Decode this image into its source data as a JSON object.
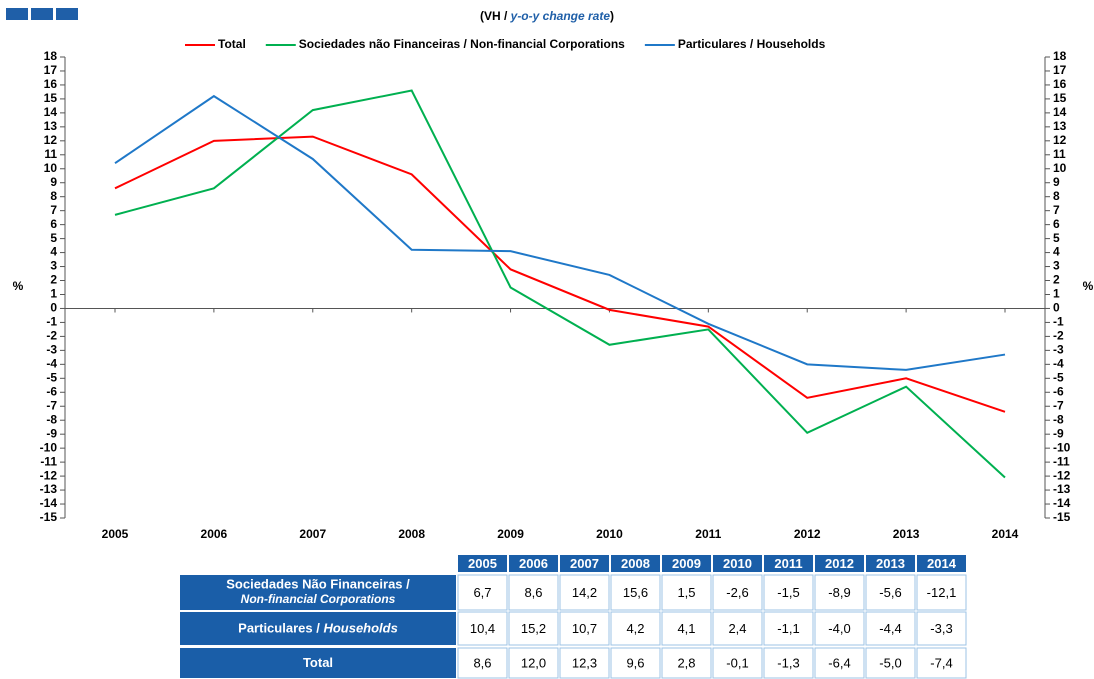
{
  "chart_data": {
    "type": "line",
    "subtitle": [
      "(VH / ",
      "y-o-y change rate",
      ")"
    ],
    "y_label": "%",
    "y2_label": "%",
    "categories": [
      "2005",
      "2006",
      "2007",
      "2008",
      "2009",
      "2010",
      "2011",
      "2012",
      "2013",
      "2014"
    ],
    "series": [
      {
        "name": "Total",
        "color": "#ff0000",
        "values": [
          8.6,
          12.0,
          12.3,
          9.6,
          2.8,
          -0.1,
          -1.3,
          -6.4,
          -5.0,
          -7.4
        ],
        "value_labels": [
          "8,6",
          "12,0",
          "12,3",
          "9,6",
          "2,8",
          "-0,1",
          "-1,3",
          "-6,4",
          "-5,0",
          "-7,4"
        ]
      },
      {
        "name": "Sociedades não Financeiras / Non-financial Corporations",
        "color": "#00b050",
        "values": [
          6.7,
          8.6,
          14.2,
          15.6,
          1.5,
          -2.6,
          -1.5,
          -8.9,
          -5.6,
          -12.1
        ],
        "value_labels": [
          "6,7",
          "8,6",
          "14,2",
          "15,6",
          "1,5",
          "-2,6",
          "-1,5",
          "-8,9",
          "-5,6",
          "-12,1"
        ]
      },
      {
        "name": "Particulares / Households",
        "color": "#1f78c8",
        "values": [
          10.4,
          15.2,
          10.7,
          4.2,
          4.1,
          2.4,
          -1.1,
          -4.0,
          -4.4,
          -3.3
        ],
        "value_labels": [
          "10,4",
          "15,2",
          "10,7",
          "4,2",
          "4,1",
          "2,4",
          "-1,1",
          "-4,0",
          "-4,4",
          "-3,3"
        ]
      }
    ],
    "ylim": [
      -15,
      18
    ],
    "yticks": [
      -15,
      -14,
      -13,
      -12,
      -11,
      -10,
      -9,
      -8,
      -7,
      -6,
      -5,
      -4,
      -3,
      -2,
      -1,
      0,
      1,
      2,
      3,
      4,
      5,
      6,
      7,
      8,
      9,
      10,
      11,
      12,
      13,
      14,
      15,
      16,
      17,
      18
    ],
    "y2lim": [
      -15,
      18
    ],
    "y2ticks": [
      -15,
      -14,
      -13,
      -12,
      -11,
      -10,
      -9,
      -8,
      -7,
      -6,
      -5,
      -4,
      -3,
      -2,
      -1,
      0,
      1,
      2,
      3,
      4,
      5,
      6,
      7,
      8,
      9,
      10,
      11,
      12,
      13,
      14,
      15,
      16,
      17,
      18
    ],
    "legend": "top",
    "table": {
      "row_labels": [
        [
          "Sociedades Não Financeiras /",
          "Non-financial Corporations"
        ],
        [
          "Particulares / ",
          "Households"
        ],
        [
          "Total"
        ]
      ]
    }
  }
}
